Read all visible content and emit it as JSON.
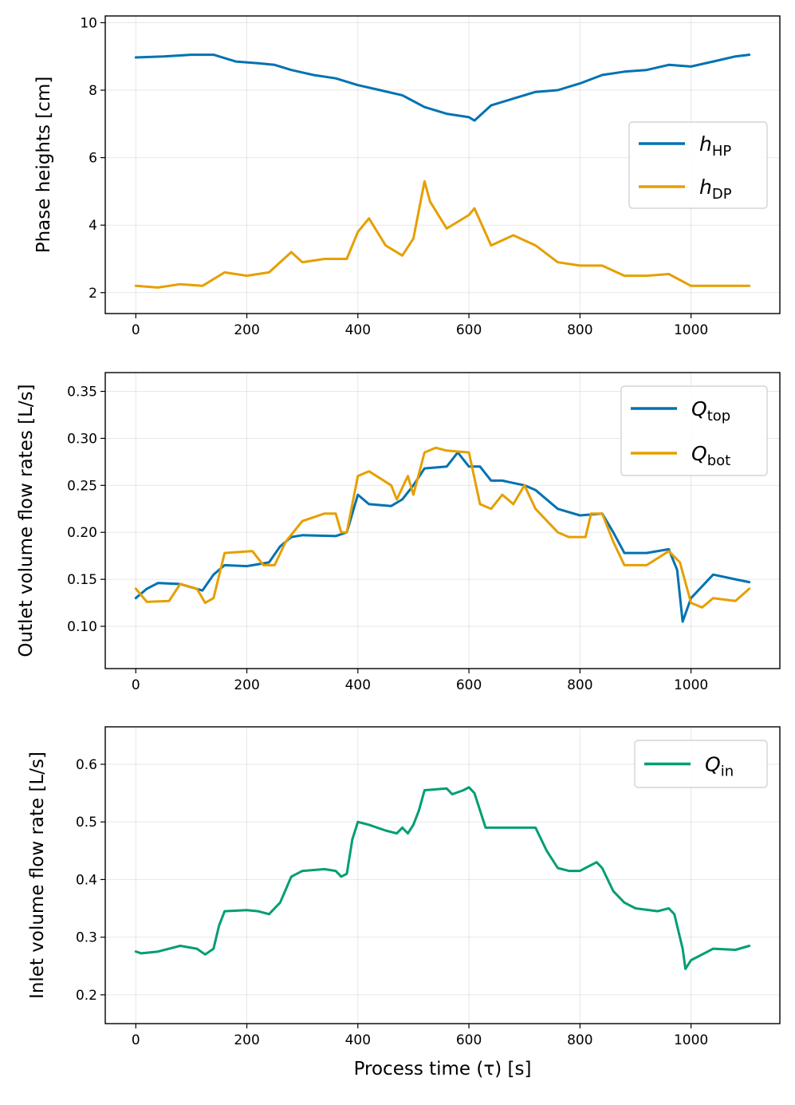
{
  "chart_data": [
    {
      "type": "line",
      "xlabel": "",
      "ylabel": "Phase heights [cm]",
      "xlim": [
        -55,
        1160
      ],
      "ylim": [
        1.38,
        10.2
      ],
      "xticks": [
        0,
        200,
        400,
        600,
        800,
        1000
      ],
      "yticks": [
        2,
        4,
        6,
        8,
        10
      ],
      "grid": true,
      "legend_position": "center-right",
      "series": [
        {
          "name": "HP",
          "italic": "h",
          "sub": "HP",
          "color": "#0072B2",
          "x": [
            0,
            50,
            100,
            140,
            180,
            220,
            250,
            280,
            320,
            360,
            400,
            440,
            480,
            520,
            560,
            600,
            610,
            640,
            680,
            720,
            760,
            800,
            840,
            880,
            920,
            960,
            1000,
            1040,
            1080,
            1105
          ],
          "values": [
            8.97,
            9.0,
            9.05,
            9.05,
            8.85,
            8.8,
            8.75,
            8.6,
            8.45,
            8.35,
            8.15,
            8.0,
            7.85,
            7.5,
            7.3,
            7.2,
            7.1,
            7.55,
            7.75,
            7.95,
            8.0,
            8.2,
            8.45,
            8.55,
            8.6,
            8.75,
            8.7,
            8.85,
            9.0,
            9.05
          ]
        },
        {
          "name": "DP",
          "italic": "h",
          "sub": "DP",
          "color": "#E69F00",
          "x": [
            0,
            40,
            80,
            120,
            160,
            200,
            240,
            280,
            300,
            340,
            380,
            400,
            420,
            450,
            480,
            500,
            520,
            530,
            560,
            600,
            610,
            640,
            680,
            720,
            760,
            800,
            840,
            880,
            920,
            960,
            1000,
            1040,
            1080,
            1105
          ],
          "values": [
            2.2,
            2.15,
            2.25,
            2.2,
            2.6,
            2.5,
            2.6,
            3.2,
            2.9,
            3.0,
            3.0,
            3.8,
            4.2,
            3.4,
            3.1,
            3.6,
            5.3,
            4.7,
            3.9,
            4.3,
            4.5,
            3.4,
            3.7,
            3.4,
            2.9,
            2.8,
            2.8,
            2.5,
            2.5,
            2.55,
            2.2,
            2.2,
            2.2,
            2.2
          ]
        }
      ]
    },
    {
      "type": "line",
      "xlabel": "",
      "ylabel": "Outlet volume flow rates [L/s]",
      "xlim": [
        -55,
        1160
      ],
      "ylim": [
        0.055,
        0.37
      ],
      "xticks": [
        0,
        200,
        400,
        600,
        800,
        1000
      ],
      "yticks": [
        0.1,
        0.15,
        0.2,
        0.25,
        0.3,
        0.35
      ],
      "ytick_labels": [
        "0.10",
        "0.15",
        "0.20",
        "0.25",
        "0.30",
        "0.35"
      ],
      "grid": true,
      "legend_position": "top-right",
      "series": [
        {
          "name": "top",
          "italic": "Q",
          "sub": "top",
          "color": "#0072B2",
          "x": [
            0,
            20,
            40,
            80,
            120,
            140,
            160,
            200,
            240,
            260,
            280,
            300,
            360,
            380,
            400,
            420,
            460,
            480,
            500,
            520,
            560,
            580,
            600,
            620,
            640,
            660,
            700,
            720,
            760,
            800,
            840,
            860,
            880,
            920,
            960,
            975,
            985,
            1000,
            1040,
            1080,
            1105
          ],
          "values": [
            0.13,
            0.14,
            0.146,
            0.145,
            0.138,
            0.155,
            0.165,
            0.164,
            0.168,
            0.185,
            0.195,
            0.197,
            0.196,
            0.2,
            0.24,
            0.23,
            0.228,
            0.235,
            0.25,
            0.268,
            0.27,
            0.285,
            0.27,
            0.27,
            0.255,
            0.255,
            0.25,
            0.245,
            0.225,
            0.218,
            0.22,
            0.2,
            0.178,
            0.178,
            0.182,
            0.16,
            0.105,
            0.13,
            0.155,
            0.15,
            0.147
          ]
        },
        {
          "name": "bot",
          "italic": "Q",
          "sub": "bot",
          "color": "#E69F00",
          "x": [
            0,
            20,
            60,
            80,
            110,
            125,
            140,
            160,
            210,
            230,
            250,
            270,
            300,
            340,
            360,
            370,
            380,
            400,
            420,
            460,
            470,
            490,
            500,
            520,
            540,
            560,
            600,
            620,
            640,
            660,
            680,
            700,
            720,
            760,
            780,
            810,
            820,
            840,
            860,
            880,
            920,
            960,
            980,
            1000,
            1020,
            1040,
            1080,
            1105
          ],
          "values": [
            0.14,
            0.126,
            0.127,
            0.145,
            0.14,
            0.125,
            0.13,
            0.178,
            0.18,
            0.165,
            0.165,
            0.19,
            0.212,
            0.22,
            0.22,
            0.2,
            0.2,
            0.26,
            0.265,
            0.25,
            0.235,
            0.26,
            0.24,
            0.285,
            0.29,
            0.287,
            0.285,
            0.23,
            0.225,
            0.24,
            0.23,
            0.25,
            0.225,
            0.2,
            0.195,
            0.195,
            0.22,
            0.22,
            0.19,
            0.165,
            0.165,
            0.18,
            0.168,
            0.125,
            0.12,
            0.13,
            0.127,
            0.14
          ]
        }
      ]
    },
    {
      "type": "line",
      "xlabel": "Process time (τ) [s]",
      "ylabel": "Inlet volume flow rate [L/s]",
      "xlim": [
        -55,
        1160
      ],
      "ylim": [
        0.15,
        0.665
      ],
      "xticks": [
        0,
        200,
        400,
        600,
        800,
        1000
      ],
      "yticks": [
        0.2,
        0.3,
        0.4,
        0.5,
        0.6
      ],
      "ytick_labels": [
        "0.2",
        "0.3",
        "0.4",
        "0.5",
        "0.6"
      ],
      "grid": true,
      "legend_position": "top-right",
      "series": [
        {
          "name": "in",
          "italic": "Q",
          "sub": "in",
          "color": "#009E73",
          "x": [
            0,
            10,
            40,
            80,
            110,
            125,
            140,
            150,
            160,
            200,
            220,
            240,
            260,
            280,
            300,
            340,
            360,
            370,
            380,
            390,
            400,
            420,
            450,
            470,
            480,
            490,
            500,
            510,
            520,
            560,
            570,
            590,
            600,
            610,
            630,
            680,
            720,
            740,
            760,
            780,
            800,
            830,
            840,
            860,
            880,
            900,
            940,
            960,
            970,
            985,
            990,
            1000,
            1040,
            1080,
            1105
          ],
          "values": [
            0.275,
            0.272,
            0.275,
            0.285,
            0.28,
            0.27,
            0.28,
            0.32,
            0.345,
            0.347,
            0.345,
            0.34,
            0.36,
            0.405,
            0.415,
            0.418,
            0.415,
            0.405,
            0.41,
            0.47,
            0.5,
            0.495,
            0.485,
            0.48,
            0.49,
            0.48,
            0.495,
            0.52,
            0.555,
            0.558,
            0.548,
            0.555,
            0.56,
            0.55,
            0.49,
            0.49,
            0.49,
            0.45,
            0.42,
            0.415,
            0.415,
            0.43,
            0.42,
            0.38,
            0.36,
            0.35,
            0.345,
            0.35,
            0.34,
            0.28,
            0.245,
            0.26,
            0.28,
            0.278,
            0.285
          ]
        }
      ]
    }
  ]
}
